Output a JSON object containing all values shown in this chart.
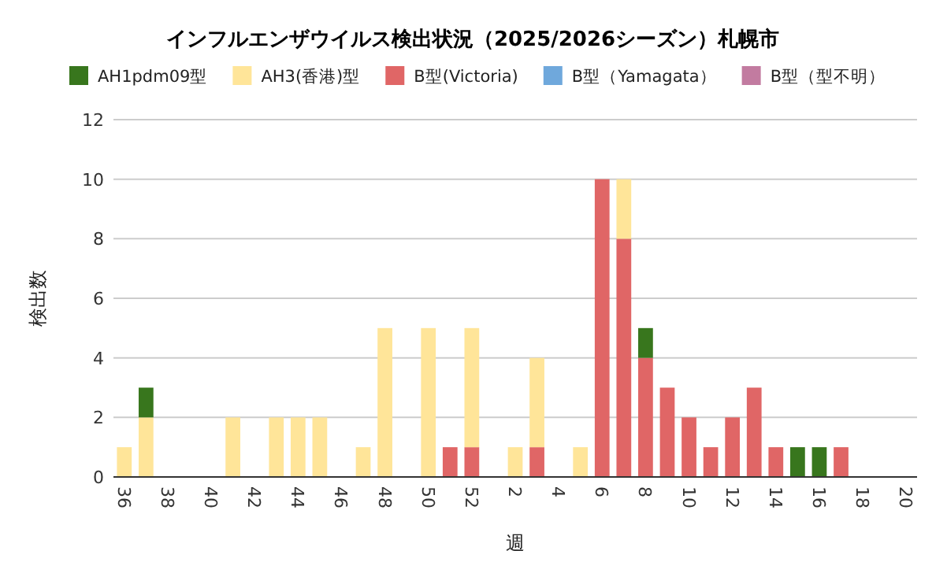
{
  "chart_data": {
    "type": "bar",
    "title": "インフルエンザウイルス検出状況（2025/2026シーズン）札幌市",
    "xlabel": "週",
    "ylabel": "検出数",
    "categories": [
      "36",
      null,
      "38",
      null,
      "40",
      null,
      "42",
      null,
      "44",
      null,
      "46",
      null,
      "48",
      null,
      "50",
      null,
      "52",
      null,
      "2",
      null,
      "4",
      null,
      "6",
      null,
      "8",
      null,
      "10",
      null,
      "12",
      null,
      "14",
      null,
      "16",
      null,
      "18",
      null,
      "20"
    ],
    "stacked": true,
    "ylim": [
      0,
      12
    ],
    "yticks": [
      0,
      2,
      4,
      6,
      8,
      10,
      12
    ],
    "grid": "y",
    "legend": "top",
    "series": [
      {
        "name": "B型（型不明）",
        "color": "#c27ba0",
        "values": [
          0,
          0,
          0,
          0,
          0,
          0,
          0,
          0,
          0,
          0,
          0,
          0,
          0,
          0,
          0,
          0,
          0,
          0,
          0,
          0,
          0,
          0,
          0,
          0,
          0,
          0,
          0,
          0,
          0,
          0,
          0,
          0,
          0,
          0,
          0,
          0,
          0
        ]
      },
      {
        "name": "B型（Yamagata）",
        "color": "#6fa8dc",
        "values": [
          0,
          0,
          0,
          0,
          0,
          0,
          0,
          0,
          0,
          0,
          0,
          0,
          0,
          0,
          0,
          0,
          0,
          0,
          0,
          0,
          0,
          0,
          0,
          0,
          0,
          0,
          0,
          0,
          0,
          0,
          0,
          0,
          0,
          0,
          0,
          0,
          0
        ]
      },
      {
        "name": "B型(Victoria)",
        "color": "#e06666",
        "values": [
          0,
          0,
          0,
          0,
          0,
          0,
          0,
          0,
          0,
          0,
          0,
          0,
          0,
          0,
          0,
          1,
          1,
          0,
          0,
          1,
          0,
          0,
          10,
          8,
          4,
          3,
          2,
          1,
          2,
          3,
          1,
          0,
          0,
          1,
          0,
          0,
          0
        ]
      },
      {
        "name": "AH3(香港)型",
        "color": "#ffe599",
        "values": [
          1,
          2,
          0,
          0,
          0,
          2,
          0,
          2,
          2,
          2,
          0,
          1,
          5,
          0,
          5,
          0,
          4,
          0,
          1,
          3,
          0,
          1,
          0,
          2,
          0,
          0,
          0,
          0,
          0,
          0,
          0,
          0,
          0,
          0,
          0,
          0,
          0
        ]
      },
      {
        "name": "AH1pdm09型",
        "color": "#38761d",
        "values": [
          0,
          1,
          0,
          0,
          0,
          0,
          0,
          0,
          0,
          0,
          0,
          0,
          0,
          0,
          0,
          0,
          0,
          0,
          0,
          0,
          0,
          0,
          0,
          0,
          1,
          0,
          0,
          0,
          0,
          0,
          0,
          1,
          1,
          0,
          0,
          0,
          0
        ]
      }
    ]
  }
}
